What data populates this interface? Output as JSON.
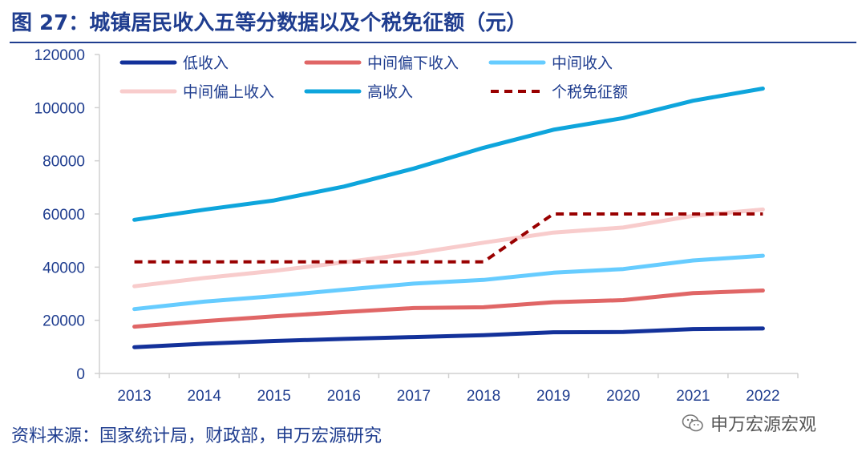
{
  "header": {
    "title": "图 27：城镇居民收入五等分数据以及个税免征额（元）"
  },
  "footer": {
    "source": "资料来源：国家统计局，财政部，申万宏源研究",
    "watermark": "申万宏源宏观"
  },
  "icons": {
    "watermark_icon": "wechat-icon"
  },
  "chart_data": {
    "type": "line",
    "title": "图 27：城镇居民收入五等分数据以及个税免征额（元）",
    "xlabel": "",
    "ylabel": "",
    "categories": [
      "2013",
      "2014",
      "2015",
      "2016",
      "2017",
      "2018",
      "2019",
      "2020",
      "2021",
      "2022"
    ],
    "ylim": [
      0,
      120000
    ],
    "yticks": [
      0,
      20000,
      40000,
      60000,
      80000,
      100000,
      120000
    ],
    "ytick_labels": [
      "0",
      "20000",
      "40000",
      "60000",
      "80000",
      "100000",
      "120000"
    ],
    "grid": false,
    "legend_position": "top",
    "series": [
      {
        "name": "低收入",
        "color": "#13319a",
        "dash": false,
        "values": [
          9900,
          11200,
          12200,
          13000,
          13700,
          14400,
          15500,
          15600,
          16700,
          16900
        ]
      },
      {
        "name": "中间偏下收入",
        "color": "#e06666",
        "dash": false,
        "values": [
          17600,
          19700,
          21500,
          23100,
          24600,
          24900,
          26800,
          27600,
          30200,
          31200
        ]
      },
      {
        "name": "中间收入",
        "color": "#66ccff",
        "dash": false,
        "values": [
          24200,
          27000,
          29100,
          31500,
          33800,
          35200,
          37900,
          39300,
          42500,
          44300
        ]
      },
      {
        "name": "中间偏上收入",
        "color": "#f8cccc",
        "dash": false,
        "values": [
          32800,
          35900,
          38600,
          41800,
          45200,
          49200,
          53000,
          54900,
          59300,
          61700
        ]
      },
      {
        "name": "高收入",
        "color": "#0ea5dc",
        "dash": false,
        "values": [
          57800,
          61600,
          65100,
          70300,
          77100,
          84900,
          91700,
          96100,
          102600,
          107200
        ]
      },
      {
        "name": "个税免征额",
        "color": "#990000",
        "dash": true,
        "values": [
          42000,
          42000,
          42000,
          42000,
          42000,
          42000,
          60000,
          60000,
          60000,
          60000
        ]
      }
    ]
  }
}
